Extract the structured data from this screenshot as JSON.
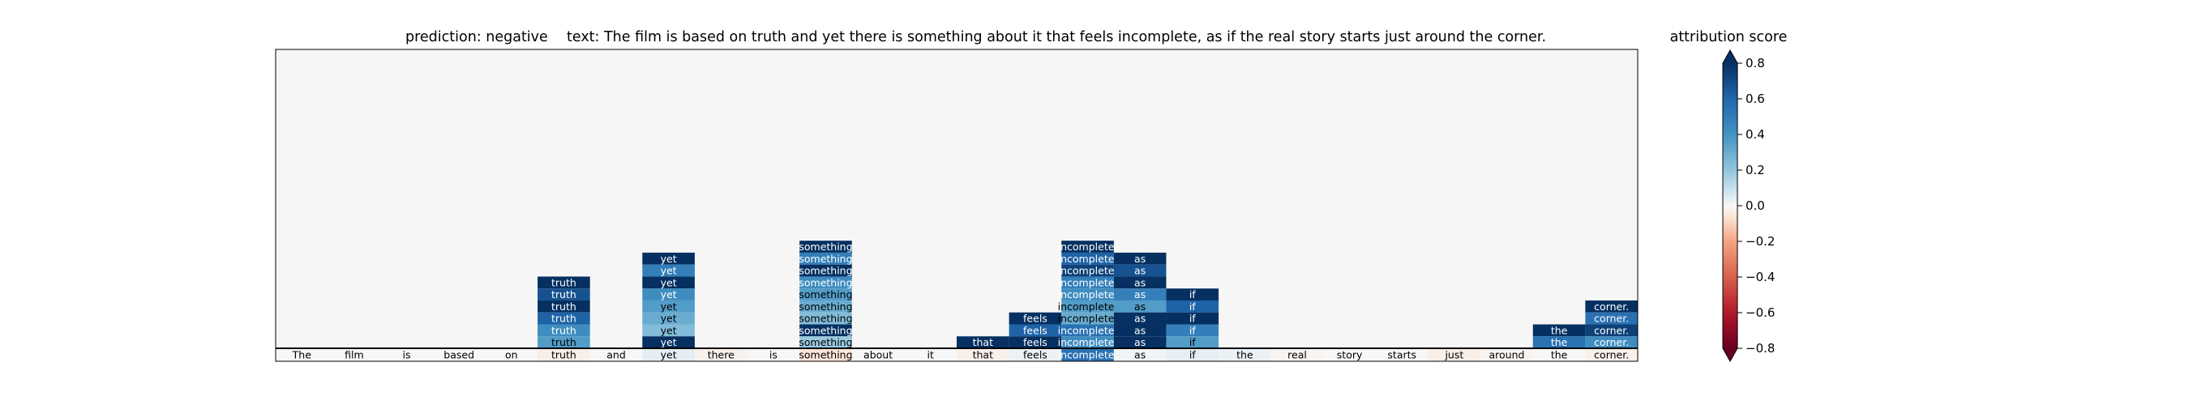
{
  "chart_data": {
    "type": "heatmap",
    "title_prediction": "prediction:  negative",
    "title_text": "text:  The film is based on truth and yet there is something about it that feels incomplete, as if the real story starts just around the corner.",
    "tokens": [
      "The",
      "film",
      "is",
      "based",
      "on",
      "truth",
      "and",
      "yet",
      "there",
      "is",
      "something",
      "about",
      "it",
      "that",
      "feels",
      "incomplete,",
      "as",
      "if",
      "the",
      "real",
      "story",
      "starts",
      "just",
      "around",
      "the",
      "corner."
    ],
    "base_scores": [
      0.0,
      0.0,
      0.0,
      0.0,
      0.0,
      -0.05,
      0.0,
      0.08,
      -0.03,
      0.0,
      -0.1,
      0.0,
      0.0,
      -0.04,
      0.05,
      0.6,
      0.03,
      0.07,
      0.05,
      -0.02,
      0.0,
      0.0,
      -0.05,
      -0.02,
      0.0,
      -0.04
    ],
    "columns": [
      {
        "token_index": 5,
        "token": "truth",
        "values": [
          0.85,
          0.7,
          0.95,
          0.65,
          0.5,
          0.45
        ]
      },
      {
        "token_index": 7,
        "token": "yet",
        "values": [
          0.85,
          0.55,
          0.95,
          0.5,
          0.45,
          0.4,
          0.35,
          0.9
        ]
      },
      {
        "token_index": 10,
        "token": "something",
        "values": [
          0.8,
          0.55,
          0.85,
          0.5,
          0.45,
          0.4,
          0.35,
          0.85,
          0.3
        ]
      },
      {
        "token_index": 13,
        "token": "that",
        "values": [
          0.95
        ]
      },
      {
        "token_index": 14,
        "token": "feels",
        "values": [
          0.8,
          0.65,
          0.9
        ]
      },
      {
        "token_index": 15,
        "token": "incomplete,",
        "values": [
          0.95,
          0.65,
          0.75,
          0.55,
          0.5,
          0.45,
          0.4,
          0.6,
          0.5
        ]
      },
      {
        "token_index": 16,
        "token": "as",
        "values": [
          0.9,
          0.7,
          0.85,
          0.55,
          0.45,
          0.9,
          0.8,
          0.85
        ]
      },
      {
        "token_index": 17,
        "token": "if",
        "values": [
          0.9,
          0.65,
          0.85,
          0.55,
          0.45
        ]
      },
      {
        "token_index": 24,
        "token": "the",
        "values": [
          0.95,
          0.6
        ]
      },
      {
        "token_index": 25,
        "token": "corner.",
        "values": [
          0.9,
          0.6,
          0.75,
          0.5
        ]
      }
    ],
    "colorbar": {
      "label": "attribution score",
      "ticks": [
        "−0.6",
        "−0.4",
        "−0.2",
        "0.0",
        "0.2",
        "0.4",
        "0.6"
      ],
      "tick_values": [
        -0.6,
        -0.4,
        -0.2,
        0.0,
        0.2,
        0.4,
        0.6
      ],
      "extreme_labels": [
        "0.8",
        "−0.8"
      ],
      "extreme_values": [
        0.8,
        -0.8
      ],
      "range": [
        -0.8,
        0.8
      ],
      "colormap": "RdBu",
      "extend": "both"
    },
    "empty_color": "#f5f6f5"
  }
}
